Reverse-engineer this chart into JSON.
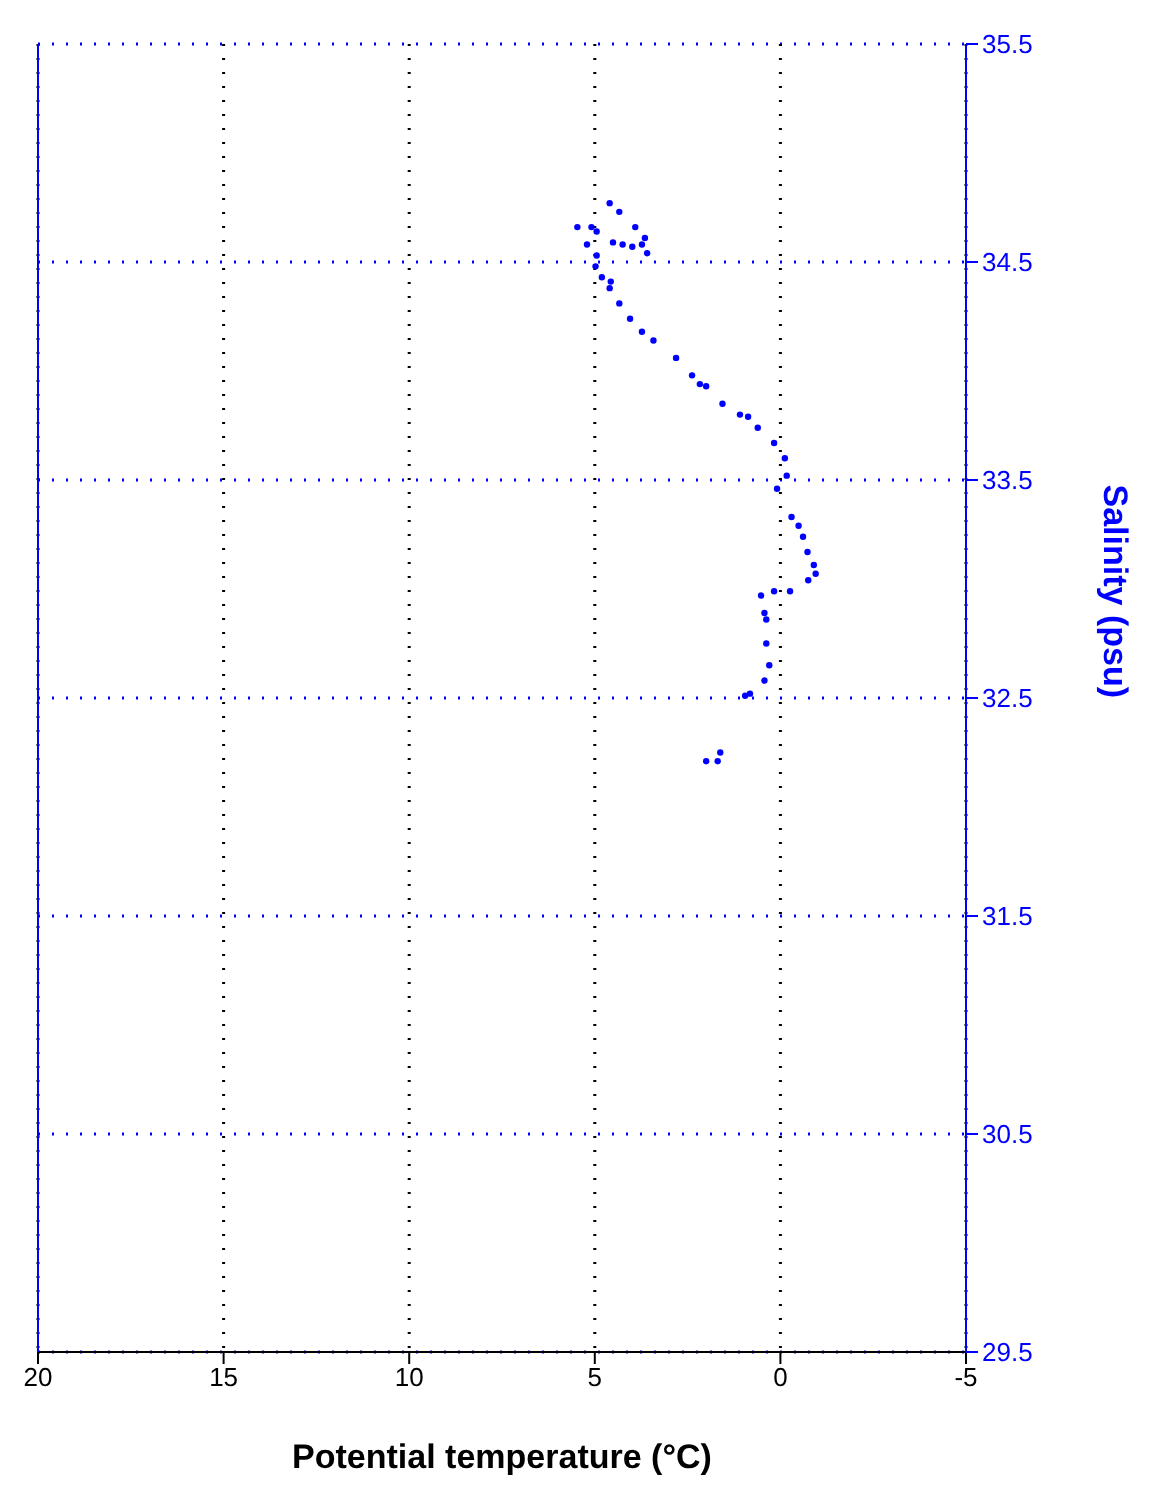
{
  "chart_data": {
    "type": "scatter",
    "xlabel": "Potential temperature (°C)",
    "ylabel": "Salinity (psu)",
    "xlim": [
      20,
      -5
    ],
    "xticks": [
      20,
      15,
      10,
      5,
      0,
      -5
    ],
    "ylim": [
      29.5,
      35.5
    ],
    "yticks": [
      29.5,
      30.5,
      31.5,
      32.5,
      33.5,
      34.5,
      35.5
    ],
    "grid": true,
    "marker": "circle",
    "series": [
      {
        "color": "#0000ff",
        "x": [
          2.0,
          1.69,
          1.62,
          0.95,
          0.82,
          0.43,
          0.3,
          0.38,
          0.38,
          0.43,
          0.52,
          0.17,
          -0.26,
          -0.75,
          -0.95,
          -0.9,
          -0.73,
          -0.61,
          -0.49,
          -0.3,
          0.09,
          -0.17,
          -0.12,
          0.17,
          0.61,
          0.87,
          1.09,
          1.56,
          2.0,
          2.17,
          2.38,
          2.81,
          3.42,
          3.73,
          4.05,
          4.34,
          4.57,
          4.6,
          4.81,
          4.98,
          4.95,
          5.21,
          5.47,
          5.09,
          4.95,
          4.51,
          4.25,
          3.99,
          3.73,
          3.59,
          3.65,
          3.91,
          4.34,
          4.6
        ],
        "values": [
          32.21,
          32.21,
          32.25,
          32.51,
          32.52,
          32.58,
          32.65,
          32.75,
          32.86,
          32.89,
          32.97,
          32.99,
          32.99,
          33.04,
          33.07,
          33.11,
          33.17,
          33.24,
          33.29,
          33.33,
          33.46,
          33.52,
          33.6,
          33.67,
          33.74,
          33.79,
          33.8,
          33.85,
          33.93,
          33.94,
          33.98,
          34.06,
          34.14,
          34.18,
          34.24,
          34.31,
          34.41,
          34.38,
          34.43,
          34.48,
          34.53,
          34.58,
          34.66,
          34.66,
          34.64,
          34.59,
          34.58,
          34.57,
          34.58,
          34.54,
          34.61,
          34.66,
          34.73,
          34.77
        ]
      }
    ]
  }
}
